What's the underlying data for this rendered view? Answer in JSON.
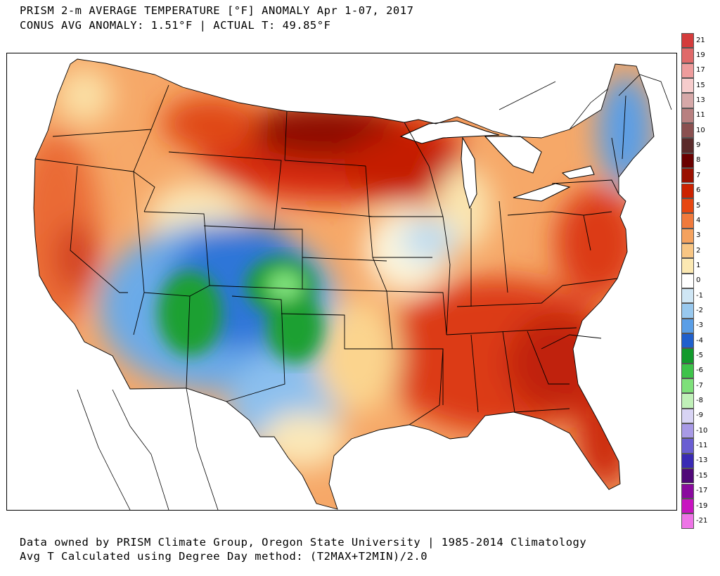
{
  "title": {
    "line1": "PRISM 2-m AVERAGE TEMPERATURE [°F] ANOMALY Apr 1-07, 2017",
    "line2": "CONUS AVG ANOMALY: 1.51°F | ACTUAL T: 49.85°F"
  },
  "footer": {
    "line1": "Data owned by PRISM Climate Group, Oregon State University | 1985-2014 Climatology",
    "line2": "Avg T Calculated using Degree Day method: (T2MAX+T2MIN)/2.0"
  },
  "colorbar": {
    "labels": [
      "21",
      "19",
      "17",
      "15",
      "13",
      "11",
      "10",
      "9",
      "8",
      "7",
      "6",
      "5",
      "4",
      "3",
      "2",
      "1",
      "0",
      "-1",
      "-2",
      "-3",
      "-4",
      "-5",
      "-6",
      "-7",
      "-8",
      "-9",
      "-10",
      "-11",
      "-13",
      "-15",
      "-17",
      "-19",
      "-21"
    ],
    "colors": [
      "#d43c3c",
      "#e06a6a",
      "#ee9c9c",
      "#f6cccc",
      "#d6a8a8",
      "#b88080",
      "#8a5050",
      "#5a2a2a",
      "#6a0000",
      "#9a1000",
      "#cc2200",
      "#e64610",
      "#f07a3c",
      "#f5a25e",
      "#f8c684",
      "#fbe8b2",
      "#ffffff",
      "#cfe6f5",
      "#98c8ee",
      "#5a9ee6",
      "#2060cc",
      "#129a2c",
      "#3ec34a",
      "#7ee07a",
      "#c0f0b8",
      "#d8d4f4",
      "#a89ae6",
      "#6a5ed2",
      "#3a2ab4",
      "#500878",
      "#8a0a9e",
      "#c814c0",
      "#ee74e6"
    ]
  },
  "legend_colors": {
    "strong_warm": "#7a0000",
    "warm": "#e64a1a",
    "mild_warm": "#f6a868",
    "neutral": "#fdf6dc",
    "cool": "#7cb6ea",
    "cold": "#2a6ed6",
    "very_cold": "#1ea032"
  }
}
